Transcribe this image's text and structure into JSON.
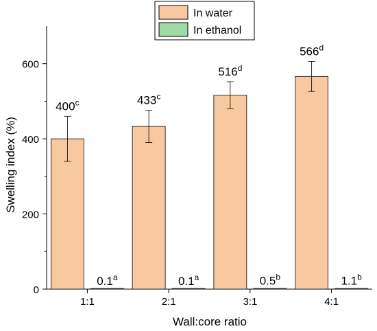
{
  "chart_data": {
    "type": "bar",
    "categories": [
      "1:1",
      "2:1",
      "3:1",
      "4:1"
    ],
    "xlabel": "Wall:core ratio",
    "ylabel": "Swelling index (%)",
    "ylim": [
      0,
      700
    ],
    "yticks": [
      0,
      200,
      400,
      600
    ],
    "grid": false,
    "legend_position": "top-center",
    "series": [
      {
        "name": "In water",
        "color": "#F8C9A0",
        "values": [
          400,
          433,
          516,
          566
        ],
        "errors": [
          60,
          43,
          36,
          40
        ],
        "labels": [
          {
            "value": "400",
            "sup": "c"
          },
          {
            "value": "433",
            "sup": "c"
          },
          {
            "value": "516",
            "sup": "d"
          },
          {
            "value": "566",
            "sup": "d"
          }
        ]
      },
      {
        "name": "In ethanol",
        "color": "#9ED9A6",
        "values": [
          0.1,
          0.1,
          0.5,
          1.1
        ],
        "errors": [
          0,
          0,
          0,
          0
        ],
        "labels": [
          {
            "value": "0.1",
            "sup": "a"
          },
          {
            "value": "0.1",
            "sup": "a"
          },
          {
            "value": "0.5",
            "sup": "b"
          },
          {
            "value": "1.1",
            "sup": "b"
          }
        ]
      }
    ]
  }
}
